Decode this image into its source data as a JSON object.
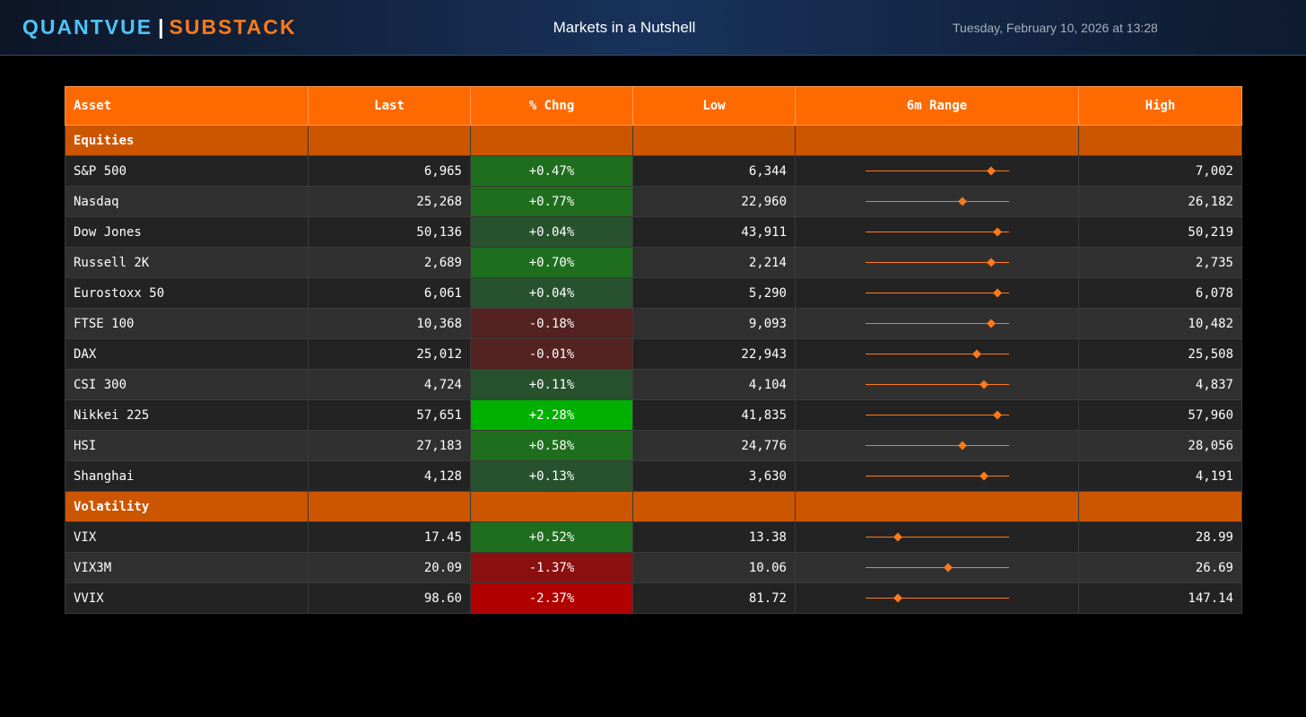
{
  "header": {
    "brand_primary": "QUANTVUE",
    "brand_separator": "|",
    "brand_secondary": "SUBSTACK",
    "title": "Markets in a Nutshell",
    "timestamp": "Tuesday, February 10, 2026 at 13:28"
  },
  "table": {
    "columns": [
      "Asset",
      "Last",
      "% Chng",
      "Low",
      "6m Range",
      "High"
    ],
    "sections": [
      {
        "name": "Equities",
        "rows": [
          {
            "asset": "S&P 500",
            "last": "6,965",
            "change": "+0.47%",
            "change_value": 0.47,
            "low": "6,344",
            "high": "7,002",
            "range_position": 0.88
          },
          {
            "asset": "Nasdaq",
            "last": "25,268",
            "change": "+0.77%",
            "change_value": 0.77,
            "low": "22,960",
            "high": "26,182",
            "range_position": 0.68
          },
          {
            "asset": "Dow Jones",
            "last": "50,136",
            "change": "+0.04%",
            "change_value": 0.04,
            "low": "43,911",
            "high": "50,219",
            "range_position": 0.92
          },
          {
            "asset": "Russell 2K",
            "last": "2,689",
            "change": "+0.70%",
            "change_value": 0.7,
            "low": "2,214",
            "high": "2,735",
            "range_position": 0.88
          },
          {
            "asset": "Eurostoxx 50",
            "last": "6,061",
            "change": "+0.04%",
            "change_value": 0.04,
            "low": "5,290",
            "high": "6,078",
            "range_position": 0.92
          },
          {
            "asset": "FTSE 100",
            "last": "10,368",
            "change": "-0.18%",
            "change_value": -0.18,
            "low": "9,093",
            "high": "10,482",
            "range_position": 0.88
          },
          {
            "asset": "DAX",
            "last": "25,012",
            "change": "-0.01%",
            "change_value": -0.01,
            "low": "22,943",
            "high": "25,508",
            "range_position": 0.78
          },
          {
            "asset": "CSI 300",
            "last": "4,724",
            "change": "+0.11%",
            "change_value": 0.11,
            "low": "4,104",
            "high": "4,837",
            "range_position": 0.83
          },
          {
            "asset": "Nikkei 225",
            "last": "57,651",
            "change": "+2.28%",
            "change_value": 2.28,
            "low": "41,835",
            "high": "57,960",
            "range_position": 0.92
          },
          {
            "asset": "HSI",
            "last": "27,183",
            "change": "+0.58%",
            "change_value": 0.58,
            "low": "24,776",
            "high": "28,056",
            "range_position": 0.68
          },
          {
            "asset": "Shanghai",
            "last": "4,128",
            "change": "+0.13%",
            "change_value": 0.13,
            "low": "3,630",
            "high": "4,191",
            "range_position": 0.83
          }
        ]
      },
      {
        "name": "Volatility",
        "rows": [
          {
            "asset": "VIX",
            "last": "17.45",
            "change": "+0.52%",
            "change_value": 0.52,
            "low": "13.38",
            "high": "28.99",
            "range_position": 0.23
          },
          {
            "asset": "VIX3M",
            "last": "20.09",
            "change": "-1.37%",
            "change_value": -1.37,
            "low": "10.06",
            "high": "26.69",
            "range_position": 0.58
          },
          {
            "asset": "VVIX",
            "last": "98.60",
            "change": "-2.37%",
            "change_value": -2.37,
            "low": "81.72",
            "high": "147.14",
            "range_position": 0.23
          }
        ]
      }
    ]
  },
  "colors": {
    "header_orange": "#ff6a00",
    "section_orange": "#cc5500",
    "range_accent": "#ff7a1a",
    "brand_blue": "#4fc3f7"
  }
}
